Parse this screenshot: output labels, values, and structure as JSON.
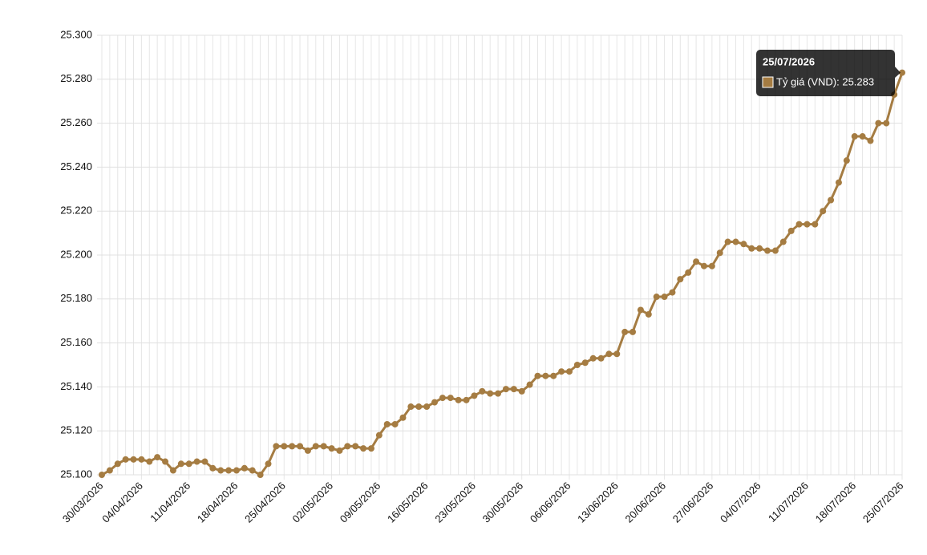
{
  "chart_data": {
    "type": "line",
    "categories": [
      "30/03/2026",
      null,
      null,
      null,
      null,
      "04/04/2026",
      null,
      null,
      null,
      null,
      null,
      "11/04/2026",
      null,
      null,
      null,
      null,
      null,
      "18/04/2026",
      null,
      null,
      null,
      null,
      null,
      "25/04/2026",
      null,
      null,
      null,
      null,
      null,
      "02/05/2026",
      null,
      null,
      null,
      null,
      null,
      "09/05/2026",
      null,
      null,
      null,
      null,
      null,
      "16/05/2026",
      null,
      null,
      null,
      null,
      null,
      "23/05/2026",
      null,
      null,
      null,
      null,
      null,
      "30/05/2026",
      null,
      null,
      null,
      null,
      null,
      "06/06/2026",
      null,
      null,
      null,
      null,
      null,
      "13/06/2026",
      null,
      null,
      null,
      null,
      null,
      "20/06/2026",
      null,
      null,
      null,
      null,
      null,
      "27/06/2026",
      null,
      null,
      null,
      null,
      null,
      "04/07/2026",
      null,
      null,
      null,
      null,
      null,
      "11/07/2026",
      null,
      null,
      null,
      null,
      null,
      "18/07/2026",
      null,
      null,
      null,
      null,
      null,
      "25/07/2026"
    ],
    "values": [
      25100,
      25102,
      25105,
      25107,
      25107,
      25107,
      25106,
      25108,
      25106,
      25102,
      25105,
      25105,
      25106,
      25106,
      25103,
      25102,
      25102,
      25102,
      25103,
      25102,
      25100,
      25105,
      25113,
      25113,
      25113,
      25113,
      25111,
      25113,
      25113,
      25112,
      25111,
      25113,
      25113,
      25112,
      25112,
      25118,
      25123,
      25123,
      25126,
      25131,
      25131,
      25131,
      25133,
      25135,
      25135,
      25134,
      25134,
      25136,
      25138,
      25137,
      25137,
      25139,
      25139,
      25138,
      25141,
      25145,
      25145,
      25145,
      25147,
      25147,
      25150,
      25151,
      25153,
      25153,
      25155,
      25155,
      25165,
      25165,
      25175,
      25173,
      25181,
      25181,
      25183,
      25189,
      25192,
      25197,
      25195,
      25195,
      25201,
      25206,
      25206,
      25205,
      25203,
      25203,
      25202,
      25202,
      25206,
      25211,
      25214,
      25214,
      25214,
      25220,
      25225,
      25233,
      25243,
      25254,
      25254,
      25252,
      25260,
      25260,
      25273,
      25283
    ],
    "color": "#a57c42",
    "ylim": [
      25100,
      25300
    ],
    "yticks": [
      {
        "value": 25100,
        "label": "25.100"
      },
      {
        "value": 25120,
        "label": "25.120"
      },
      {
        "value": 25140,
        "label": "25.140"
      },
      {
        "value": 25160,
        "label": "25.160"
      },
      {
        "value": 25180,
        "label": "25.180"
      },
      {
        "value": 25200,
        "label": "25.200"
      },
      {
        "value": 25220,
        "label": "25.220"
      },
      {
        "value": 25240,
        "label": "25.240"
      },
      {
        "value": 25260,
        "label": "25.260"
      },
      {
        "value": 25280,
        "label": "25.280"
      },
      {
        "value": 25300,
        "label": "25.300"
      }
    ],
    "grid": true,
    "tooltip": {
      "label": "Tỷ giá (VND): 25.283"
    }
  }
}
